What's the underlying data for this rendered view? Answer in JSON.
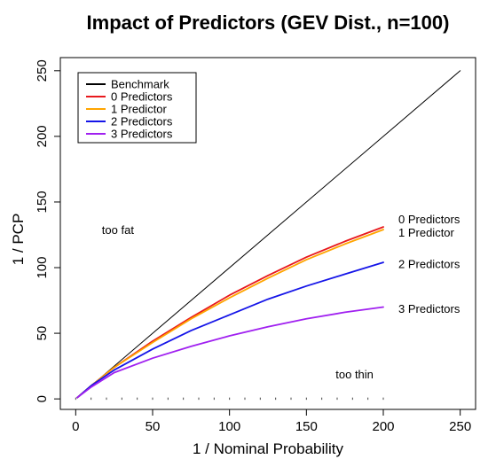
{
  "chart_data": {
    "type": "line",
    "title": "Impact of Predictors (GEV Dist., n=100)",
    "xlabel": "1 / Nominal Probability",
    "ylabel": "1 / PCP",
    "xlim": [
      -10,
      260
    ],
    "ylim": [
      -8,
      260
    ],
    "xticks": [
      0,
      50,
      100,
      150,
      200,
      250
    ],
    "yticks": [
      0,
      50,
      100,
      150,
      200,
      250
    ],
    "grid": false,
    "legend_position": "top-left",
    "series": [
      {
        "name": "Benchmark",
        "color": "#000000",
        "x": [
          1,
          250
        ],
        "y": [
          1,
          250
        ]
      },
      {
        "name": "0 Predictors",
        "color": "#e8191d",
        "x": [
          1,
          10,
          25,
          50,
          75,
          100,
          125,
          150,
          175,
          200
        ],
        "y": [
          1,
          10,
          24,
          44,
          62,
          79,
          94,
          108,
          120,
          131
        ]
      },
      {
        "name": "1 Predictor",
        "color": "#ffa500",
        "x": [
          1,
          10,
          25,
          50,
          75,
          100,
          125,
          150,
          175,
          200
        ],
        "y": [
          1,
          10,
          24,
          43,
          61,
          77,
          92,
          106,
          118,
          129
        ]
      },
      {
        "name": "2 Predictors",
        "color": "#1515e8",
        "x": [
          1,
          10,
          25,
          50,
          75,
          100,
          125,
          150,
          175,
          200
        ],
        "y": [
          1,
          10,
          22,
          38,
          52,
          64,
          76,
          86,
          95,
          104
        ]
      },
      {
        "name": "3 Predictors",
        "color": "#a020f0",
        "x": [
          1,
          10,
          25,
          50,
          75,
          100,
          125,
          150,
          175,
          200
        ],
        "y": [
          1,
          9,
          20,
          31,
          40,
          48,
          55,
          61,
          66,
          70
        ]
      }
    ],
    "end_labels": [
      {
        "text": "0 Predictors",
        "x": 200,
        "y": 137
      },
      {
        "text": "1 Predictor",
        "x": 200,
        "y": 127
      },
      {
        "text": "2 Predictors",
        "x": 200,
        "y": 103
      },
      {
        "text": "3 Predictors",
        "x": 200,
        "y": 69
      }
    ],
    "annotations": [
      {
        "text": "too fat",
        "x": 17,
        "y": 129
      },
      {
        "text": "too thin",
        "x": 169,
        "y": 19
      }
    ],
    "rug_x": [
      0,
      10,
      20,
      30,
      40,
      50,
      60,
      70,
      80,
      90,
      100,
      110,
      120,
      130,
      140,
      150,
      160,
      170,
      180,
      190,
      200
    ]
  }
}
